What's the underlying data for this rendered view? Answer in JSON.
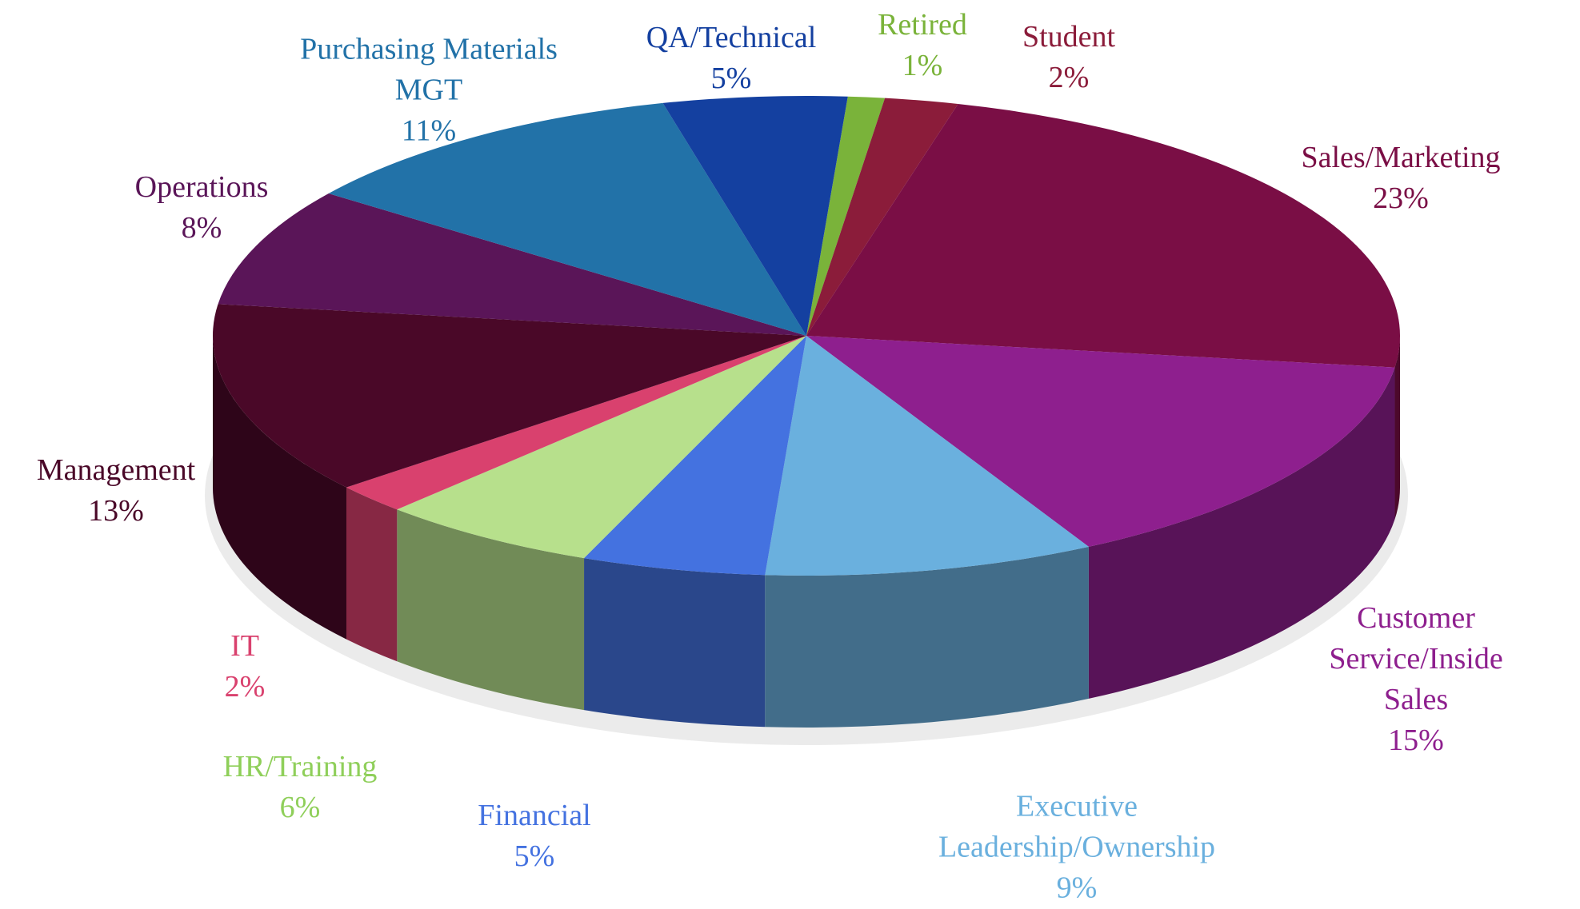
{
  "chart_data": {
    "type": "pie3d",
    "categories": [
      "Retired",
      "Student",
      "Sales/Marketing",
      "Customer\nService/Inside Sales",
      "Executive\nLeadership/Ownership",
      "Financial",
      "HR/Training",
      "IT",
      "Management",
      "Operations",
      "Purchasing Materials\nMGT",
      "QA/Technical"
    ],
    "values": [
      1,
      2,
      23,
      15,
      9,
      5,
      6,
      2,
      13,
      8,
      11,
      5
    ],
    "value_labels": [
      "1%",
      "2%",
      "23%",
      "15%",
      "9%",
      "5%",
      "6%",
      "2%",
      "13%",
      "8%",
      "11%",
      "5%"
    ],
    "colors": [
      "#7ab33a",
      "#8b1c3a",
      "#7a0e45",
      "#8e1f8e",
      "#6ab0de",
      "#4472e0",
      "#b7e08c",
      "#d9416e",
      "#4a0828",
      "#5a1558",
      "#2272a8",
      "#1440a0"
    ],
    "label_colors": [
      "#7ab33a",
      "#8b1c3a",
      "#7a0e45",
      "#8e1f8e",
      "#6ab0de",
      "#4472e0",
      "#8fcf5a",
      "#d9416e",
      "#4a0828",
      "#5a1558",
      "#2272a8",
      "#1440a0"
    ]
  }
}
